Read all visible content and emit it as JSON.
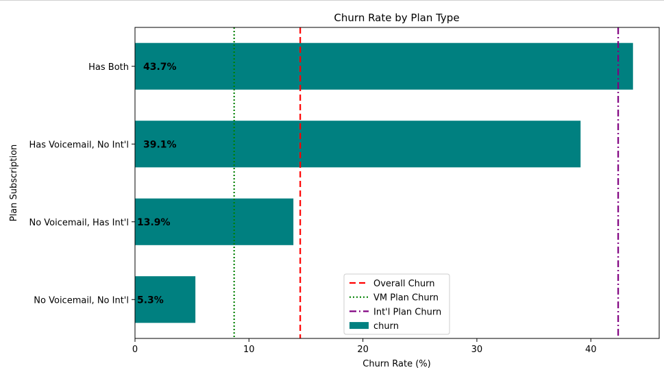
{
  "chart_data": {
    "type": "bar",
    "orientation": "horizontal",
    "title": "Churn Rate by Plan Type",
    "xlabel": "Churn Rate (%)",
    "ylabel": "Plan Subscription",
    "xlim": [
      0,
      46
    ],
    "xticks": [
      0,
      10,
      20,
      30,
      40
    ],
    "categories": [
      "Has Both",
      "Has Voicemail, No Int'l",
      "No Voicemail, Has Int'l",
      "No Voicemail, No Int'l"
    ],
    "series": [
      {
        "name": "churn",
        "values": [
          43.7,
          39.1,
          13.9,
          5.3
        ],
        "color": "#008080"
      }
    ],
    "data_labels": [
      "43.7%",
      "39.1%",
      "13.9%",
      "5.3%"
    ],
    "reference_lines": [
      {
        "name": "Overall Churn",
        "value": 14.5,
        "color": "#ff0000",
        "style": "dashed"
      },
      {
        "name": "VM Plan Churn",
        "value": 8.7,
        "color": "#008000",
        "style": "dotted"
      },
      {
        "name": "Int'l Plan Churn",
        "value": 42.4,
        "color": "#800080",
        "style": "dashdot"
      }
    ],
    "legend": {
      "position": "lower-center",
      "entries": [
        "Overall Churn",
        "VM Plan Churn",
        "Int'l Plan Churn",
        "churn"
      ]
    },
    "grid": false
  }
}
